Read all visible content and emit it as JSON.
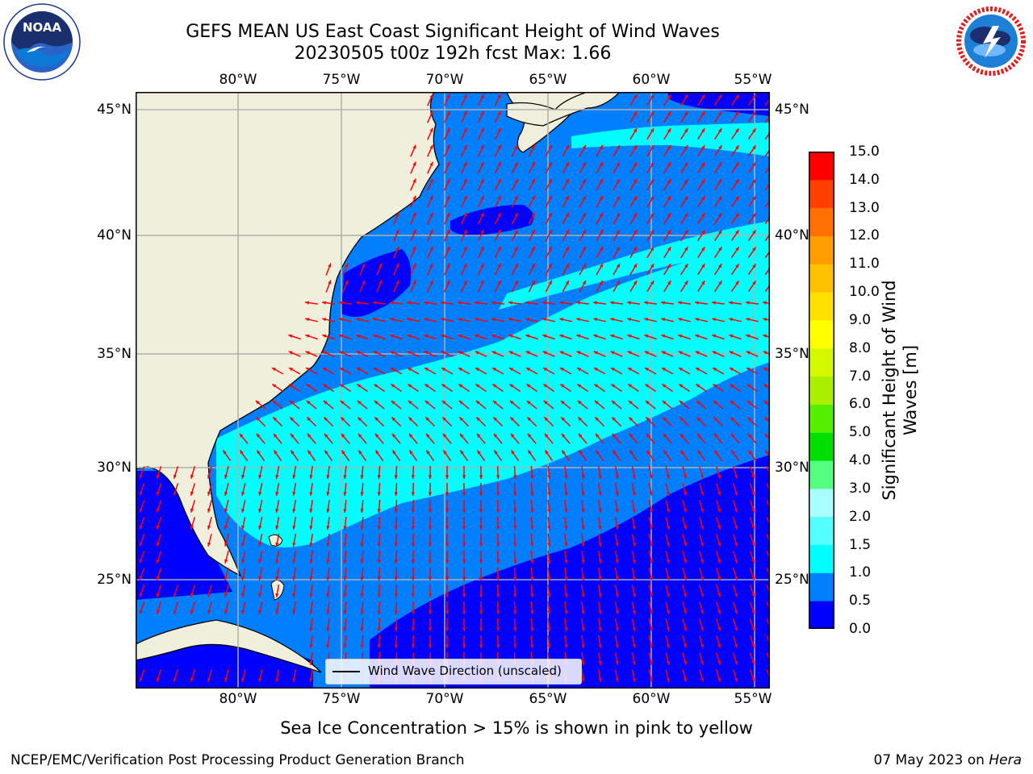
{
  "title": {
    "line1": "GEFS MEAN US East Coast Significant Height of Wind Waves",
    "line2": "20230505 t00z 192h fcst   Max: 1.66"
  },
  "map": {
    "lon_labels": [
      "80°W",
      "75°W",
      "70°W",
      "65°W",
      "60°W",
      "55°W"
    ],
    "lat_labels": [
      "45°N",
      "40°N",
      "35°N",
      "30°N",
      "25°N"
    ],
    "colors": {
      "land": "#efefdc",
      "ocean_0_05": "#0000ff",
      "ocean_05_1": "#0080ff",
      "ocean_1_15": "#00ffff",
      "grid": "#b0b0b0",
      "arrow": "#ff0000"
    }
  },
  "legend": {
    "label": "Wind Wave Direction (unscaled)"
  },
  "colorbar": {
    "label_line1": "Significant Height of Wind",
    "label_line2": "Waves [m]",
    "ticks": [
      "0.0",
      "0.5",
      "1.0",
      "1.5",
      "2.0",
      "3.0",
      "4.0",
      "5.0",
      "6.0",
      "7.0",
      "8.0",
      "9.0",
      "10.0",
      "11.0",
      "12.0",
      "13.0",
      "14.0",
      "15.0"
    ],
    "colors": [
      "#0000ff",
      "#0080ff",
      "#00ffff",
      "#55ffff",
      "#aaffff",
      "#55ff80",
      "#00e000",
      "#55f000",
      "#aaf000",
      "#d4f800",
      "#ffff00",
      "#ffe000",
      "#ffc000",
      "#ff9c00",
      "#ff7000",
      "#ff4000",
      "#ff0000"
    ]
  },
  "footnote": "Sea Ice Concentration > 15% is shown in pink to yellow",
  "footer": {
    "left": "NCEP/EMC/Verification Post Processing Product Generation Branch",
    "right_date": "07 May 2023 on ",
    "right_host": "Hera"
  },
  "logos": {
    "left": "NOAA",
    "right": "NATIONAL WEATHER SERVICE"
  }
}
